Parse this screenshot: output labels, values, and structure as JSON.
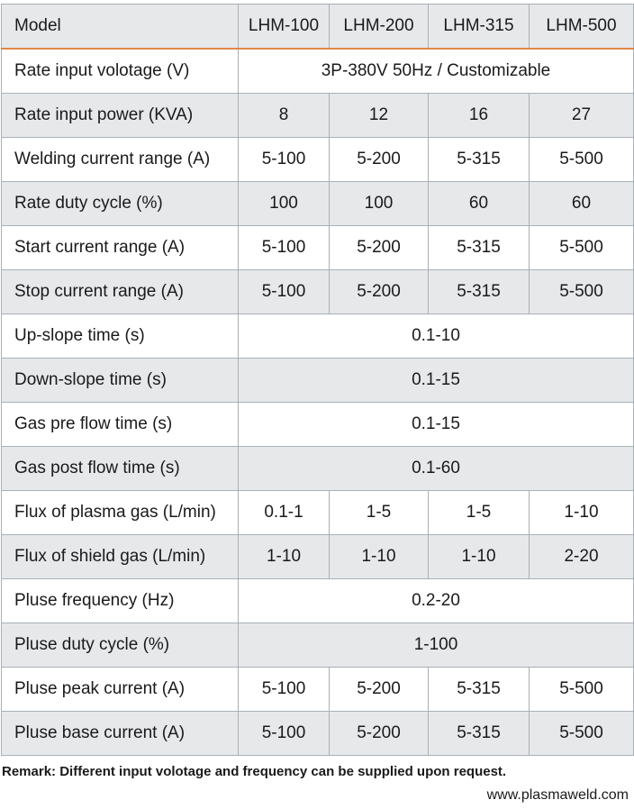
{
  "header": {
    "label": "Model",
    "models": [
      "LHM-100",
      "LHM-200",
      "LHM-315",
      "LHM-500"
    ]
  },
  "rows": [
    {
      "label": "Rate input volotage (V)",
      "merged": "3P-380V 50Hz  /  Customizable"
    },
    {
      "label": "Rate input power (KVA)",
      "values": [
        "8",
        "12",
        "16",
        "27"
      ]
    },
    {
      "label": "Welding current range (A)",
      "values": [
        "5-100",
        "5-200",
        "5-315",
        "5-500"
      ]
    },
    {
      "label": "Rate duty cycle (%)",
      "values": [
        "100",
        "100",
        "60",
        "60"
      ]
    },
    {
      "label": "Start current range (A)",
      "values": [
        "5-100",
        "5-200",
        "5-315",
        "5-500"
      ]
    },
    {
      "label": "Stop current range (A)",
      "values": [
        "5-100",
        "5-200",
        "5-315",
        "5-500"
      ]
    },
    {
      "label": "Up-slope time (s)",
      "merged": "0.1-10"
    },
    {
      "label": "Down-slope time (s)",
      "merged": "0.1-15"
    },
    {
      "label": "Gas pre flow time (s)",
      "merged": "0.1-15"
    },
    {
      "label": "Gas post flow time (s)",
      "merged": "0.1-60"
    },
    {
      "label": "Flux of plasma gas (L/min)",
      "values": [
        "0.1-1",
        "1-5",
        "1-5",
        "1-10"
      ]
    },
    {
      "label": "Flux of shield gas (L/min)",
      "values": [
        "1-10",
        "1-10",
        "1-10",
        "2-20"
      ]
    },
    {
      "label": "Pluse frequency (Hz)",
      "merged": "0.2-20"
    },
    {
      "label": "Pluse duty cycle (%)",
      "merged": "1-100"
    },
    {
      "label": "Pluse peak current (A)",
      "values": [
        "5-100",
        "5-200",
        "5-315",
        "5-500"
      ]
    },
    {
      "label": "Pluse base current (A)",
      "values": [
        "5-100",
        "5-200",
        "5-315",
        "5-500"
      ]
    }
  ],
  "remark": "Remark: Different input volotage and frequency can be supplied upon request.",
  "website": "www.plasmaweld.com"
}
